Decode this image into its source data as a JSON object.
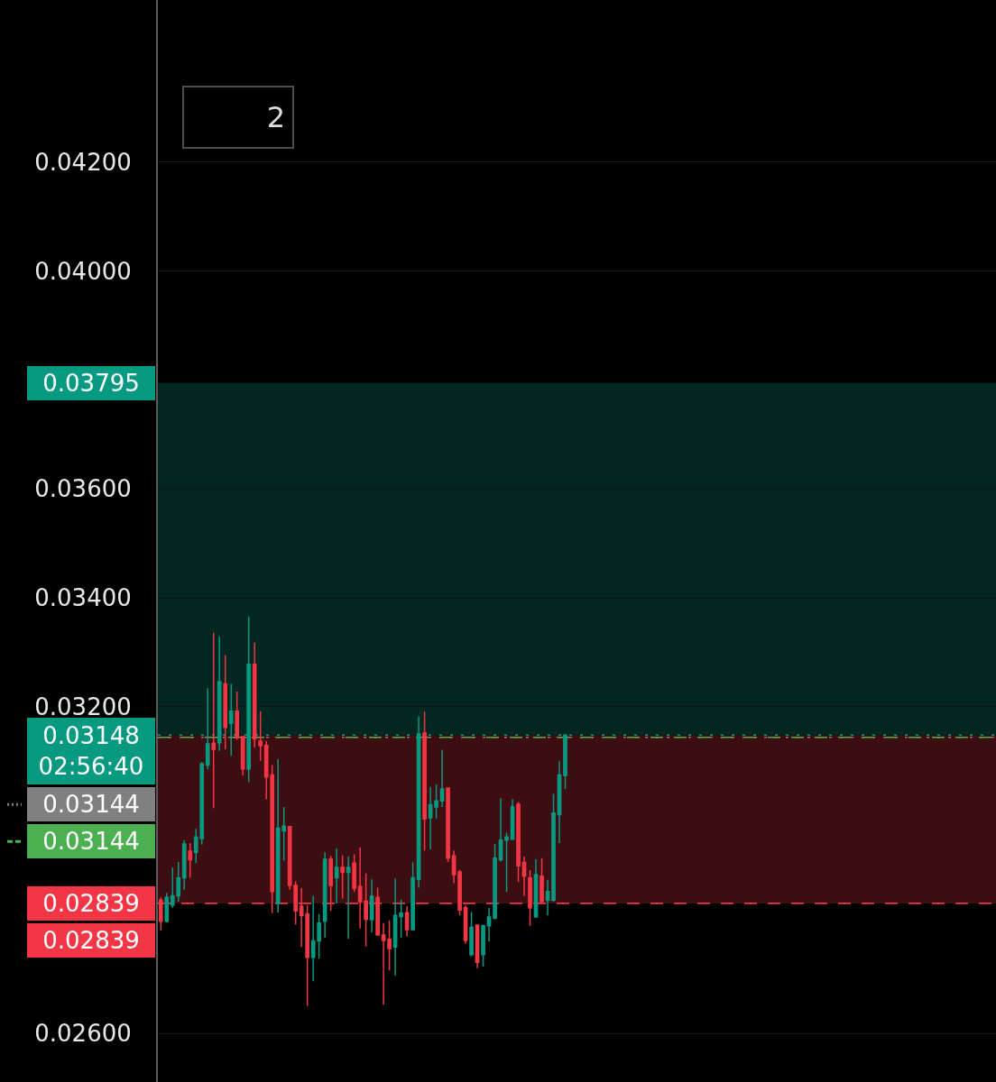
{
  "chart_data": {
    "type": "candlestick",
    "categories": [
      null,
      null,
      null,
      null,
      null,
      null,
      null,
      null,
      null,
      null,
      null,
      null,
      null,
      null,
      null,
      null,
      null,
      null,
      null,
      null,
      null,
      null,
      null,
      null,
      null,
      null,
      null,
      null,
      null,
      null,
      null,
      null,
      null,
      null,
      null,
      null,
      null,
      null,
      null,
      null,
      null,
      null,
      null,
      null,
      null,
      null,
      null,
      null,
      null,
      null,
      null,
      null,
      null,
      null,
      null,
      null,
      null,
      null,
      null,
      null,
      null,
      null,
      null,
      null,
      null,
      null,
      null,
      null,
      null,
      null,
      null,
      null,
      null,
      null,
      null,
      null,
      null,
      null,
      null,
      null,
      null,
      null,
      null,
      null,
      null,
      null,
      null,
      null,
      null,
      null,
      null,
      null,
      null,
      null,
      null,
      null,
      null,
      null,
      null,
      null,
      null,
      null,
      null,
      null,
      null,
      null,
      null,
      null,
      null,
      null,
      null,
      null,
      null,
      null,
      null,
      null,
      null,
      null,
      null,
      null,
      null,
      null,
      null,
      null,
      null,
      null,
      null,
      null,
      null,
      null,
      null,
      null,
      null,
      null,
      null,
      null,
      null,
      null,
      null,
      null,
      null,
      null,
      null
    ],
    "ohlc": [
      [
        0.02845,
        0.0285,
        0.02789,
        0.02806
      ],
      [
        0.02806,
        0.02858,
        0.02804,
        0.0285
      ],
      [
        0.02836,
        0.02905,
        0.02831,
        0.02853
      ],
      [
        0.02853,
        0.02915,
        0.02842,
        0.02886
      ],
      [
        0.02886,
        0.02955,
        0.02864,
        0.02948
      ],
      [
        0.02935,
        0.0295,
        0.02886,
        0.02919
      ],
      [
        0.02933,
        0.02976,
        0.02913,
        0.02961
      ],
      [
        0.02958,
        0.03099,
        0.02947,
        0.03095
      ],
      [
        0.03093,
        0.03234,
        0.03085,
        0.03132
      ],
      [
        0.03133,
        0.03336,
        0.03014,
        0.03122
      ],
      [
        0.03134,
        0.03329,
        0.03119,
        0.03246
      ],
      [
        0.03242,
        0.03295,
        0.03122,
        0.03162
      ],
      [
        0.0317,
        0.03242,
        0.0311,
        0.03192
      ],
      [
        0.03192,
        0.03228,
        0.0314,
        0.03143
      ],
      [
        0.03145,
        0.03145,
        0.03074,
        0.03086
      ],
      [
        0.03086,
        0.03366,
        0.03062,
        0.03278
      ],
      [
        0.03278,
        0.03318,
        0.03125,
        0.03141
      ],
      [
        0.03137,
        0.03192,
        0.03101,
        0.03129
      ],
      [
        0.03129,
        0.03137,
        0.0303,
        0.03071
      ],
      [
        0.03075,
        0.03093,
        0.02821,
        0.02861
      ],
      [
        0.02839,
        0.03104,
        0.02822,
        0.02977
      ],
      [
        0.02972,
        0.03016,
        0.02918,
        0.02981
      ],
      [
        0.0298,
        0.02981,
        0.02864,
        0.02872
      ],
      [
        0.02872,
        0.0288,
        0.028,
        0.02825
      ],
      [
        0.02834,
        0.02867,
        0.02759,
        0.02817
      ],
      [
        0.0282,
        0.02836,
        0.02651,
        0.0274
      ],
      [
        0.0274,
        0.02853,
        0.02696,
        0.0277
      ],
      [
        0.0277,
        0.02819,
        0.02738,
        0.02803
      ],
      [
        0.02806,
        0.02933,
        0.02776,
        0.0292
      ],
      [
        0.0292,
        0.02926,
        0.02825,
        0.02872
      ],
      [
        0.02886,
        0.0294,
        0.02839,
        0.02905
      ],
      [
        0.02905,
        0.02927,
        0.02848,
        0.02896
      ],
      [
        0.02896,
        0.02925,
        0.02774,
        0.02905
      ],
      [
        0.02913,
        0.02929,
        0.0286,
        0.02867
      ],
      [
        0.0287,
        0.02942,
        0.02793,
        0.02842
      ],
      [
        0.02843,
        0.02894,
        0.0276,
        0.0281
      ],
      [
        0.02809,
        0.02883,
        0.02786,
        0.02852
      ],
      [
        0.0285,
        0.02868,
        0.02781,
        0.02781
      ],
      [
        0.02781,
        0.02803,
        0.02653,
        0.02771
      ],
      [
        0.02773,
        0.02808,
        0.02716,
        0.02756
      ],
      [
        0.02759,
        0.02885,
        0.02707,
        0.02817
      ],
      [
        0.02815,
        0.02846,
        0.02776,
        0.02821
      ],
      [
        0.02822,
        0.02834,
        0.02778,
        0.02791
      ],
      [
        0.02791,
        0.02914,
        0.02789,
        0.02886
      ],
      [
        0.02883,
        0.03183,
        0.02868,
        0.0315
      ],
      [
        0.03152,
        0.03191,
        0.02936,
        0.02994
      ],
      [
        0.02996,
        0.03053,
        0.02938,
        0.0302
      ],
      [
        0.03016,
        0.03058,
        0.02995,
        0.03027
      ],
      [
        0.03027,
        0.03121,
        0.03016,
        0.03049
      ],
      [
        0.03051,
        0.03052,
        0.02915,
        0.02922
      ],
      [
        0.02926,
        0.02936,
        0.02876,
        0.02892
      ],
      [
        0.02897,
        0.029,
        0.02817,
        0.02827
      ],
      [
        0.02831,
        0.02836,
        0.02765,
        0.02771
      ],
      [
        0.02745,
        0.02823,
        0.02742,
        0.02795
      ],
      [
        0.02799,
        0.028,
        0.0272,
        0.02731
      ],
      [
        0.02745,
        0.028,
        0.02723,
        0.02798
      ],
      [
        0.02798,
        0.02831,
        0.02769,
        0.02814
      ],
      [
        0.02812,
        0.02948,
        0.0281,
        0.02922
      ],
      [
        0.02919,
        0.03032,
        0.02916,
        0.02955
      ],
      [
        0.02955,
        0.02969,
        0.0286,
        0.02961
      ],
      [
        0.02957,
        0.0303,
        0.02957,
        0.03016
      ],
      [
        0.03021,
        0.03025,
        0.02878,
        0.02908
      ],
      [
        0.02914,
        0.02925,
        0.02853,
        0.02889
      ],
      [
        0.02886,
        0.029,
        0.02798,
        0.02831
      ],
      [
        0.02814,
        0.0292,
        0.02814,
        0.02892
      ],
      [
        0.02889,
        0.02922,
        0.02842,
        0.02842
      ],
      [
        0.02845,
        0.02882,
        0.02817,
        0.02861
      ],
      [
        0.02845,
        0.0304,
        0.02842,
        0.03005
      ],
      [
        0.03002,
        0.031,
        0.0295,
        0.03075
      ],
      [
        0.03074,
        0.03148,
        0.03049,
        0.03148
      ],
      null,
      null,
      null,
      null,
      null,
      null,
      null,
      null,
      null,
      null,
      null,
      null,
      null,
      null,
      null,
      null,
      null,
      null,
      null,
      null,
      null,
      null,
      null,
      null,
      null,
      null,
      null,
      null,
      null,
      null,
      null,
      null,
      null,
      null,
      null,
      null,
      null,
      null,
      null,
      null,
      null,
      null,
      null,
      null,
      null,
      null,
      null,
      null,
      null,
      null,
      null,
      null,
      null,
      null,
      null,
      null,
      null,
      null,
      null,
      null,
      null,
      null,
      null,
      null,
      null,
      null,
      null,
      null,
      null,
      null,
      null,
      null,
      null
    ],
    "colors": [
      "#f23645",
      "#089981",
      "#089981",
      "#089981",
      "#089981",
      "#f23645",
      "#089981",
      "#089981",
      "#089981",
      "#f23645",
      "#089981",
      "#f23645",
      "#089981",
      "#f23645",
      "#f23645",
      "#089981",
      "#f23645",
      "#f23645",
      "#f23645",
      "#f23645",
      "#089981",
      "#089981",
      "#f23645",
      "#f23645",
      "#f23645",
      "#f23645",
      "#089981",
      "#089981",
      "#089981",
      "#f23645",
      "#089981",
      "#f23645",
      "#089981",
      "#f23645",
      "#f23645",
      "#f23645",
      "#089981",
      "#f23645",
      "#f23645",
      "#f23645",
      "#089981",
      "#089981",
      "#f23645",
      "#089981",
      "#089981",
      "#f23645",
      "#089981",
      "#089981",
      "#089981",
      "#f23645",
      "#f23645",
      "#f23645",
      "#f23645",
      "#089981",
      "#f23645",
      "#089981",
      "#089981",
      "#089981",
      "#089981",
      "#089981",
      "#089981",
      "#f23645",
      "#f23645",
      "#f23645",
      "#089981",
      "#f23645",
      "#089981",
      "#089981",
      "#089981",
      "#089981",
      null,
      null,
      null,
      null,
      null,
      null,
      null,
      null,
      null,
      null,
      null,
      null,
      null,
      null,
      null,
      null,
      null,
      null,
      null,
      null,
      null,
      null,
      null,
      null,
      null,
      null,
      null,
      null,
      null,
      null,
      null,
      null,
      null,
      null,
      null,
      null,
      null,
      null,
      null,
      null,
      null,
      null,
      null,
      null,
      null,
      null,
      null,
      null,
      null,
      null,
      null,
      null,
      null,
      null,
      null,
      null,
      null,
      null,
      null,
      null,
      null,
      null,
      null,
      null,
      null,
      null,
      null,
      null,
      null,
      null,
      null,
      null,
      null
    ],
    "ylim": [
      0.02511,
      0.04498
    ],
    "yticks": [
      {
        "value": 0.026,
        "label": "0.02600"
      },
      {
        "value": 0.032,
        "label": "0.03200"
      },
      {
        "value": 0.034,
        "label": "0.03400"
      },
      {
        "value": 0.036,
        "label": "0.03600"
      },
      {
        "value": 0.04,
        "label": "0.04000"
      },
      {
        "value": 0.042,
        "label": "0.04200"
      }
    ],
    "tick_labels": "y",
    "grid": "y",
    "ref_lines": [
      {
        "axis": "y",
        "value": 0.03148,
        "label": "0.03148\n02:56:40",
        "color": "#089981",
        "line_style": "dotted"
      },
      {
        "axis": "y",
        "value": 0.03144,
        "label": "0.03144",
        "color": "#808080",
        "line_style": "dotted"
      },
      {
        "axis": "y",
        "value": 0.03144,
        "label": "0.03144",
        "color": "#4caf50",
        "line_style": "dashed"
      },
      {
        "axis": "y",
        "value": 0.02839,
        "label": "0.02839",
        "color": "#f23645",
        "line_style": "dashed"
      }
    ],
    "bands": [
      {
        "axis": "y",
        "from": 0.03148,
        "to": 0.03795,
        "label": "0.03795",
        "color": "#089981"
      },
      {
        "axis": "y",
        "from": 0.03148,
        "to": 0.02839,
        "label": "0.02839",
        "color": "#f23645"
      }
    ],
    "annotations": [
      "2"
    ]
  }
}
